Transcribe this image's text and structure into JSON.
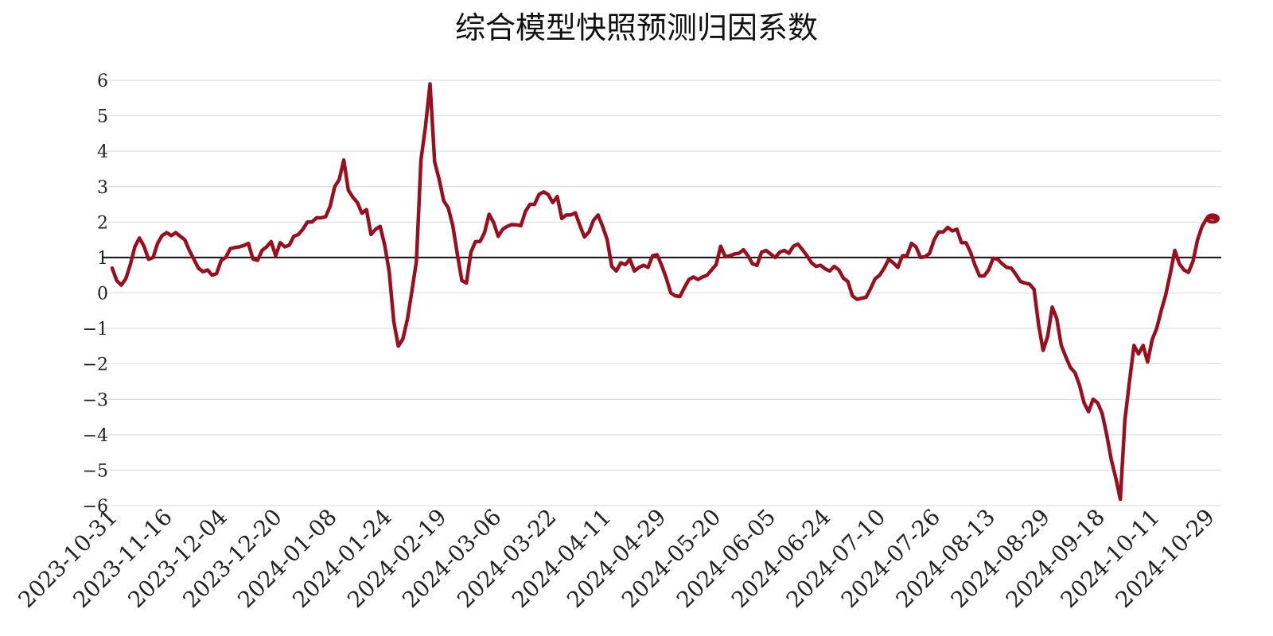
{
  "chart_data": {
    "type": "line",
    "title": "综合模型快照预测归因系数",
    "xlabel": "",
    "ylabel": "",
    "ylim": [
      -6,
      6
    ],
    "yticks": [
      6,
      5,
      4,
      3,
      2,
      1,
      0,
      -1,
      -2,
      -3,
      -4,
      -5,
      -6
    ],
    "ytick_labels": [
      "6",
      "5",
      "4",
      "3",
      "2",
      "1",
      "0",
      "−1",
      "−2",
      "−3",
      "−4",
      "−5",
      "−6"
    ],
    "x_tick_labels": [
      "2023-10-31",
      "2023-11-16",
      "2023-12-04",
      "2023-12-20",
      "2024-01-08",
      "2024-01-24",
      "2024-02-19",
      "2024-03-06",
      "2024-03-22",
      "2024-04-11",
      "2024-04-29",
      "2024-05-20",
      "2024-06-05",
      "2024-06-24",
      "2024-07-10",
      "2024-07-26",
      "2024-08-13",
      "2024-08-29",
      "2024-09-18",
      "2024-10-11",
      "2024-10-29"
    ],
    "grid": true,
    "reference_line": 1,
    "colors": {
      "series": "#9a0f1f",
      "reference": "#111111",
      "grid": "#d9d9d9"
    },
    "series": [
      {
        "values": [
          0.7,
          0.35,
          0.22,
          0.4,
          0.8,
          1.3,
          1.55,
          1.32,
          0.95,
          1.0,
          1.4,
          1.62,
          1.7,
          1.62,
          1.7,
          1.6,
          1.5,
          1.2,
          0.95,
          0.7,
          0.6,
          0.65,
          0.5,
          0.55,
          0.92,
          1.0,
          1.25,
          1.28,
          1.3,
          1.34,
          1.4,
          0.96,
          0.92,
          1.2,
          1.3,
          1.45,
          1.05,
          1.42,
          1.3,
          1.35,
          1.6,
          1.65,
          1.8,
          2.0,
          2.0,
          2.12,
          2.12,
          2.15,
          2.45,
          3.0,
          3.2,
          3.75,
          2.9,
          2.7,
          2.55,
          2.25,
          2.35,
          1.65,
          1.8,
          1.88,
          1.35,
          0.6,
          -0.8,
          -1.5,
          -1.3,
          -0.75,
          0.05,
          0.9,
          3.75,
          4.7,
          5.9,
          3.7,
          3.2,
          2.6,
          2.4,
          1.9,
          1.1,
          0.35,
          0.28,
          1.15,
          1.45,
          1.45,
          1.7,
          2.22,
          1.98,
          1.6,
          1.8,
          1.88,
          1.93,
          1.92,
          1.9,
          2.3,
          2.5,
          2.5,
          2.78,
          2.85,
          2.78,
          2.55,
          2.72,
          2.1,
          2.2,
          2.2,
          2.26,
          1.9,
          1.58,
          1.72,
          2.05,
          2.2,
          1.88,
          1.5,
          0.75,
          0.62,
          0.85,
          0.8,
          0.95,
          0.62,
          0.72,
          0.78,
          0.72,
          1.05,
          1.08,
          0.78,
          0.42,
          0.0,
          -0.08,
          -0.1,
          0.15,
          0.38,
          0.45,
          0.38,
          0.45,
          0.5,
          0.65,
          0.8,
          1.32,
          1.02,
          1.05,
          1.1,
          1.12,
          1.22,
          1.05,
          0.82,
          0.78,
          1.15,
          1.2,
          1.1,
          1.0,
          1.15,
          1.2,
          1.12,
          1.32,
          1.38,
          1.22,
          1.05,
          0.85,
          0.75,
          0.78,
          0.68,
          0.62,
          0.75,
          0.65,
          0.42,
          0.32,
          -0.08,
          -0.18,
          -0.15,
          -0.12,
          0.12,
          0.4,
          0.5,
          0.7,
          0.95,
          0.85,
          0.72,
          1.05,
          1.05,
          1.4,
          1.3,
          1.0,
          1.02,
          1.12,
          1.5,
          1.72,
          1.72,
          1.85,
          1.75,
          1.8,
          1.42,
          1.42,
          1.15,
          0.78,
          0.48,
          0.48,
          0.65,
          0.98,
          0.95,
          0.82,
          0.72,
          0.7,
          0.52,
          0.32,
          0.28,
          0.25,
          0.1,
          -0.9,
          -1.62,
          -1.22,
          -0.4,
          -0.72,
          -1.48,
          -1.8,
          -2.1,
          -2.25,
          -2.6,
          -3.1,
          -3.35,
          -3.0,
          -3.1,
          -3.4,
          -4.0,
          -4.7,
          -5.22,
          -5.82,
          -3.6,
          -2.5,
          -1.48,
          -1.72,
          -1.48,
          -1.95,
          -1.32,
          -1.0,
          -0.5,
          -0.05,
          0.55,
          1.2,
          0.82,
          0.65,
          0.58,
          0.9,
          1.5,
          1.88,
          2.1,
          2.12,
          2.1
        ]
      }
    ]
  }
}
